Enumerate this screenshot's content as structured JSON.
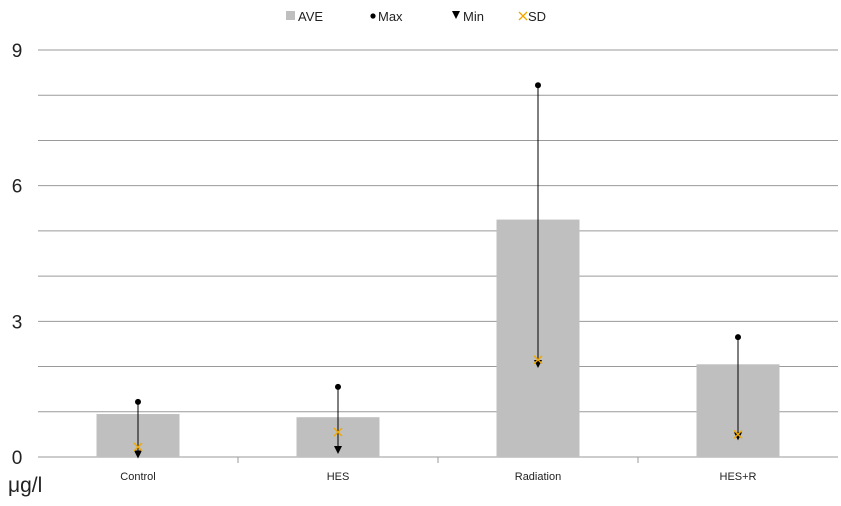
{
  "chart_data": {
    "type": "bar",
    "categories": [
      "Control",
      "HES",
      "Radiation",
      "HES+R"
    ],
    "series": [
      {
        "name": "AVE",
        "values": [
          0.95,
          0.88,
          5.25,
          2.05
        ]
      },
      {
        "name": "Max",
        "values": [
          1.22,
          1.55,
          8.22,
          2.65
        ]
      },
      {
        "name": "Min",
        "values": [
          0.1,
          0.2,
          2.1,
          0.5
        ]
      },
      {
        "name": "SD",
        "values": [
          0.22,
          0.55,
          2.15,
          0.5
        ]
      }
    ],
    "yticks": [
      "0",
      "3",
      "6",
      "9"
    ],
    "ylim": [
      0,
      9
    ],
    "ylabel": "μg/l",
    "grid": true,
    "legend_position": "top",
    "colors": {
      "bar": "#bfbfbf",
      "marker": "#000000",
      "sd": "#f0a800",
      "grid": "#9a9a9a"
    }
  }
}
